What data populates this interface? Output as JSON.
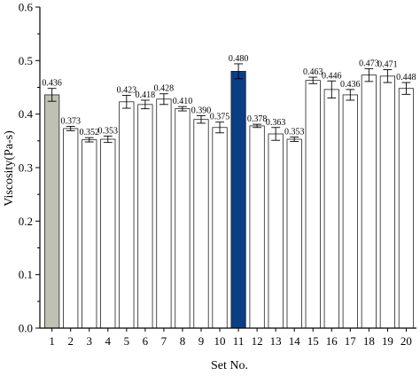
{
  "chart_data": {
    "type": "bar",
    "title": "",
    "xlabel": "Set No.",
    "ylabel": "Viscosity(Pa-s)",
    "ylim": [
      0.0,
      0.6
    ],
    "yticks": [
      "0.0",
      "0.1",
      "0.2",
      "0.3",
      "0.4",
      "0.5",
      "0.6"
    ],
    "categories": [
      "1",
      "2",
      "3",
      "4",
      "5",
      "6",
      "7",
      "8",
      "9",
      "10",
      "11",
      "12",
      "13",
      "14",
      "15",
      "16",
      "17",
      "18",
      "19",
      "20"
    ],
    "values": [
      0.436,
      0.373,
      0.352,
      0.353,
      0.423,
      0.418,
      0.428,
      0.41,
      0.39,
      0.375,
      0.48,
      0.378,
      0.363,
      0.353,
      0.463,
      0.446,
      0.436,
      0.473,
      0.471,
      0.448
    ],
    "value_labels": [
      "0.436",
      "0.373",
      "0.352",
      "0.353",
      "0.423",
      "0.418",
      "0.428",
      "0.410",
      "0.390",
      "0.375",
      "0.480",
      "0.378",
      "0.363",
      "0.353",
      "0.463",
      "0.446",
      "0.436",
      "0.473",
      "0.471",
      "0.448"
    ],
    "errors": [
      0.012,
      0.004,
      0.004,
      0.006,
      0.012,
      0.008,
      0.01,
      0.004,
      0.007,
      0.01,
      0.014,
      0.003,
      0.012,
      0.004,
      0.006,
      0.016,
      0.01,
      0.012,
      0.012,
      0.011
    ],
    "grid": false,
    "legend": "none",
    "colors": {
      "default_fill": "#ffffff",
      "highlight_1": "#bfc2b2",
      "highlight_11": "#0a3f86",
      "stroke": "#222222"
    }
  }
}
